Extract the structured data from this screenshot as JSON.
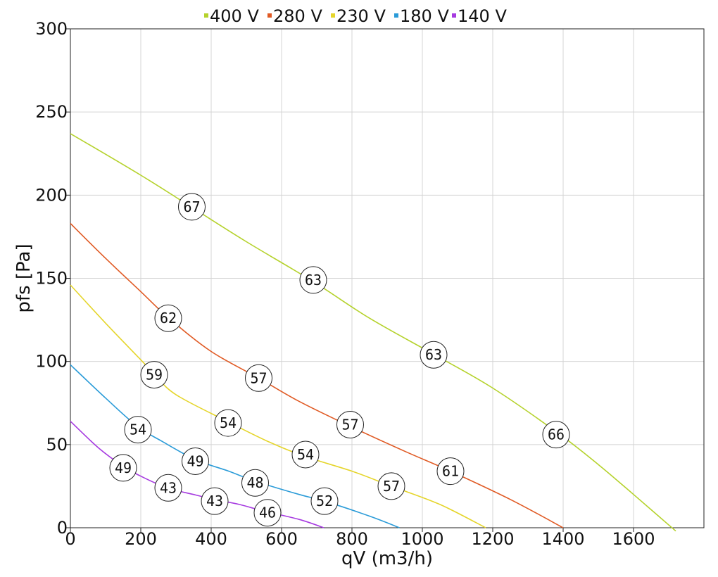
{
  "chart_data": {
    "type": "line",
    "xlabel": "qV (m3/h)",
    "ylabel": "pfs [Pa]",
    "xlim": [
      0,
      1800
    ],
    "ylim": [
      0,
      300
    ],
    "x_ticks": [
      0,
      200,
      400,
      600,
      800,
      1000,
      1200,
      1400,
      1600
    ],
    "y_ticks": [
      0,
      50,
      100,
      150,
      200,
      250,
      300
    ],
    "grid": true,
    "legend_placement": "top-center",
    "series": [
      {
        "name": "400 V",
        "color": "#b5d22c",
        "points": [
          [
            0,
            237
          ],
          [
            200,
            212
          ],
          [
            350,
            192
          ],
          [
            500,
            172
          ],
          [
            690,
            148
          ],
          [
            850,
            126
          ],
          [
            1035,
            104
          ],
          [
            1200,
            84
          ],
          [
            1385,
            57
          ],
          [
            1500,
            38
          ],
          [
            1600,
            20
          ],
          [
            1720,
            -2
          ]
        ],
        "markers": [
          {
            "x": 345,
            "y": 193,
            "label": "67"
          },
          {
            "x": 690,
            "y": 149,
            "label": "63"
          },
          {
            "x": 1032,
            "y": 104,
            "label": "63"
          },
          {
            "x": 1380,
            "y": 56,
            "label": "66"
          }
        ]
      },
      {
        "name": "280 V",
        "color": "#e05a24",
        "points": [
          [
            0,
            183
          ],
          [
            100,
            162
          ],
          [
            200,
            142
          ],
          [
            280,
            126
          ],
          [
            400,
            106
          ],
          [
            535,
            90
          ],
          [
            650,
            76
          ],
          [
            795,
            61
          ],
          [
            950,
            46
          ],
          [
            1080,
            34
          ],
          [
            1250,
            17
          ],
          [
            1400,
            0
          ]
        ],
        "markers": [
          {
            "x": 278,
            "y": 126,
            "label": "62"
          },
          {
            "x": 535,
            "y": 90,
            "label": "57"
          },
          {
            "x": 795,
            "y": 62,
            "label": "57"
          },
          {
            "x": 1080,
            "y": 34,
            "label": "61"
          }
        ]
      },
      {
        "name": "230 V",
        "color": "#e5d52a",
        "points": [
          [
            0,
            146
          ],
          [
            100,
            123
          ],
          [
            200,
            101
          ],
          [
            240,
            92
          ],
          [
            300,
            80
          ],
          [
            445,
            64
          ],
          [
            560,
            52
          ],
          [
            665,
            43
          ],
          [
            800,
            34
          ],
          [
            912,
            25
          ],
          [
            1050,
            14
          ],
          [
            1180,
            0
          ]
        ],
        "markers": [
          {
            "x": 238,
            "y": 92,
            "label": "59"
          },
          {
            "x": 448,
            "y": 63,
            "label": "54"
          },
          {
            "x": 668,
            "y": 44,
            "label": "54"
          },
          {
            "x": 912,
            "y": 25,
            "label": "57"
          }
        ]
      },
      {
        "name": "180 V",
        "color": "#2a9bd8",
        "points": [
          [
            0,
            98
          ],
          [
            100,
            78
          ],
          [
            190,
            61
          ],
          [
            260,
            52
          ],
          [
            355,
            41
          ],
          [
            450,
            34
          ],
          [
            525,
            28
          ],
          [
            650,
            20
          ],
          [
            722,
            16
          ],
          [
            850,
            7
          ],
          [
            935,
            0
          ]
        ],
        "markers": [
          {
            "x": 192,
            "y": 59,
            "label": "54"
          },
          {
            "x": 355,
            "y": 40,
            "label": "49"
          },
          {
            "x": 525,
            "y": 27,
            "label": "48"
          },
          {
            "x": 722,
            "y": 16,
            "label": "52"
          }
        ]
      },
      {
        "name": "140 V",
        "color": "#a63ae0",
        "points": [
          [
            0,
            64
          ],
          [
            80,
            48
          ],
          [
            150,
            37
          ],
          [
            200,
            31
          ],
          [
            275,
            24
          ],
          [
            350,
            20
          ],
          [
            410,
            17
          ],
          [
            480,
            14
          ],
          [
            550,
            10
          ],
          [
            650,
            5
          ],
          [
            720,
            0
          ]
        ],
        "markers": [
          {
            "x": 150,
            "y": 36,
            "label": "49"
          },
          {
            "x": 278,
            "y": 24,
            "label": "43"
          },
          {
            "x": 410,
            "y": 16,
            "label": "43"
          },
          {
            "x": 560,
            "y": 9,
            "label": "46"
          }
        ]
      }
    ]
  }
}
